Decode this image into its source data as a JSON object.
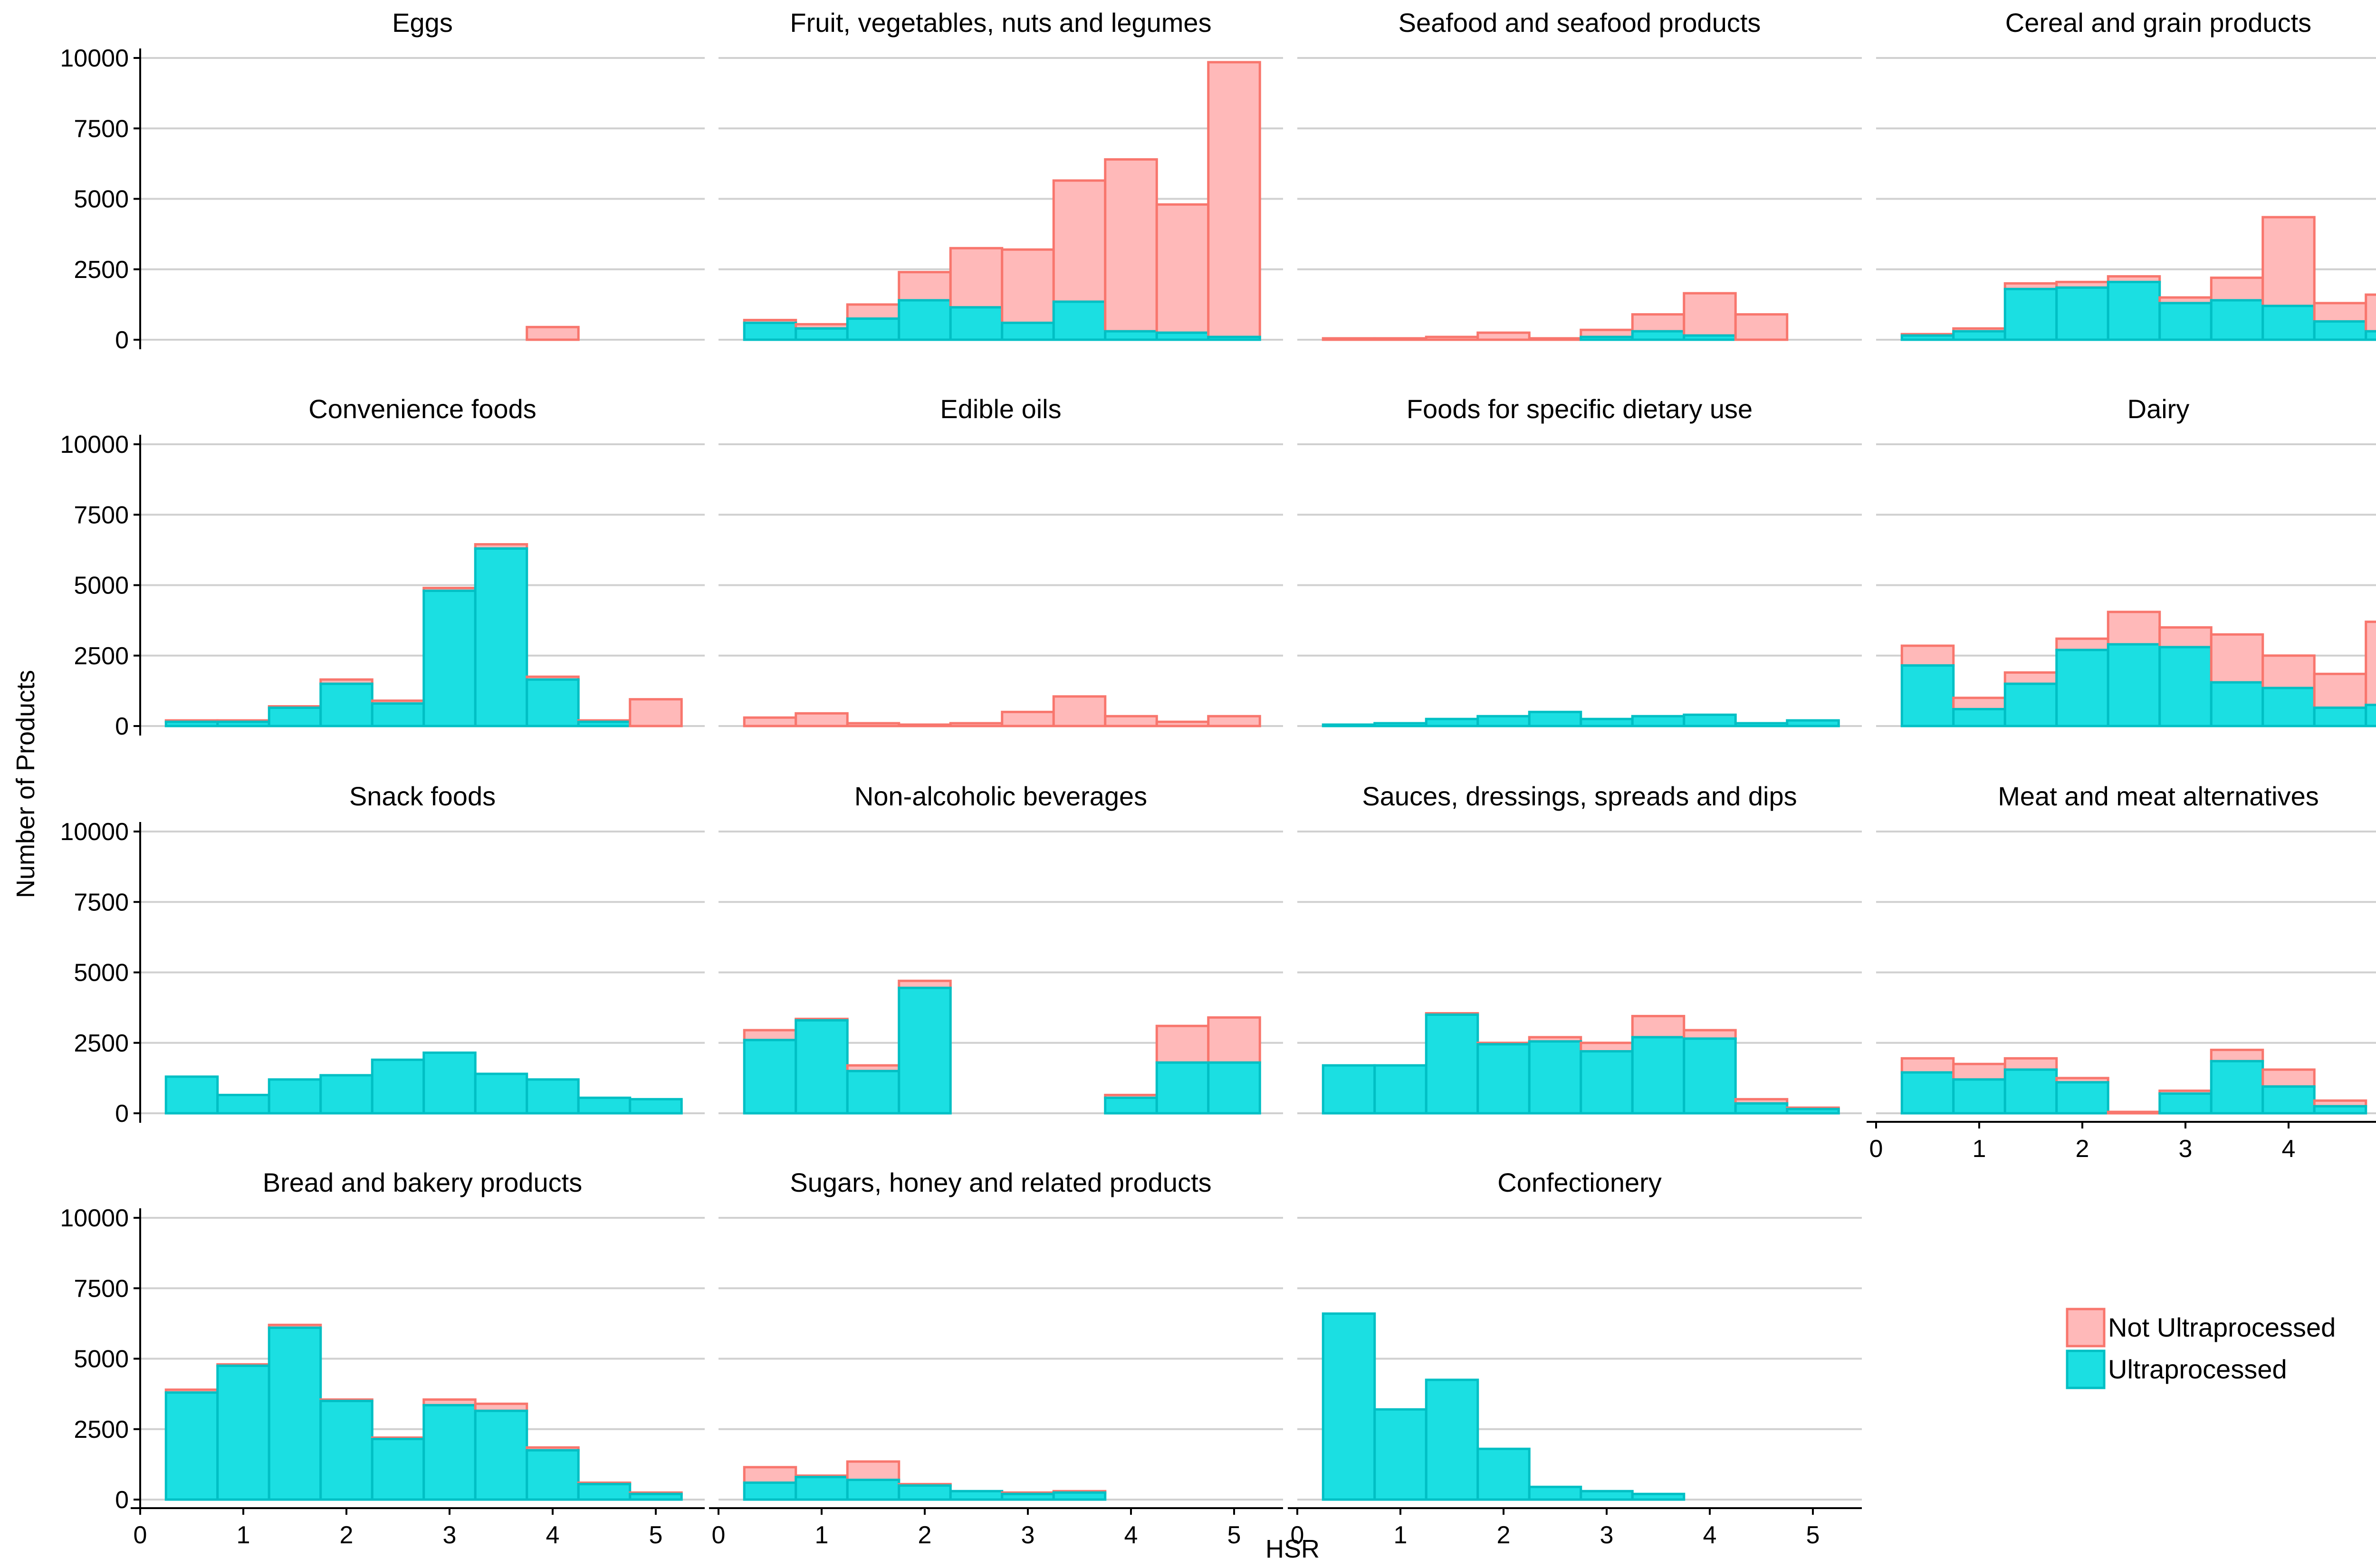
{
  "chart_data": {
    "type": "bar",
    "layout": "faceted histogram, stacked",
    "xlabel": "HSR",
    "ylabel": "Number of Products",
    "ylim": [
      0,
      10000
    ],
    "y_ticks": [
      "0",
      "2500",
      "5000",
      "7500",
      "10000"
    ],
    "xlim": [
      0,
      5.5
    ],
    "x_ticks": [
      "0",
      "1",
      "2",
      "3",
      "4",
      "5"
    ],
    "bin_centers": [
      0.5,
      1.0,
      1.5,
      2.0,
      2.5,
      3.0,
      3.5,
      4.0,
      4.5,
      5.0
    ],
    "bin_width": 0.5,
    "grid": true,
    "legend_position": "bottom-right",
    "series": [
      {
        "name": "Not Ultraprocessed",
        "fill": "#ffb9b9",
        "edge": "#f8766d"
      },
      {
        "name": "Ultraprocessed",
        "fill": "#1bdfe2",
        "edge": "#00bfc4"
      }
    ],
    "facets": [
      {
        "title": "Eggs",
        "ultra": [
          0,
          0,
          0,
          0,
          0,
          0,
          0,
          0,
          0,
          0
        ],
        "not_ultra": [
          0,
          0,
          0,
          0,
          0,
          0,
          0,
          450,
          0,
          0
        ]
      },
      {
        "title": "Fruit, vegetables, nuts and legumes",
        "ultra": [
          600,
          400,
          750,
          1400,
          1150,
          600,
          1350,
          300,
          250,
          100
        ],
        "not_ultra": [
          100,
          150,
          500,
          1000,
          2100,
          2600,
          4300,
          6100,
          4550,
          9750
        ]
      },
      {
        "title": "Seafood and seafood products",
        "ultra": [
          0,
          0,
          0,
          0,
          0,
          100,
          300,
          150,
          0,
          0
        ],
        "not_ultra": [
          50,
          50,
          100,
          250,
          50,
          250,
          600,
          1500,
          900,
          0
        ]
      },
      {
        "title": "Cereal and grain products",
        "ultra": [
          150,
          300,
          1800,
          1850,
          2050,
          1300,
          1400,
          1200,
          650,
          300
        ],
        "not_ultra": [
          50,
          100,
          200,
          200,
          200,
          200,
          800,
          3150,
          650,
          1300
        ]
      },
      {
        "title": "Convenience foods",
        "ultra": [
          150,
          150,
          650,
          1500,
          800,
          4800,
          6300,
          1650,
          150,
          0
        ],
        "not_ultra": [
          50,
          50,
          50,
          150,
          100,
          100,
          150,
          100,
          50,
          950
        ]
      },
      {
        "title": "Edible oils",
        "ultra": [
          0,
          0,
          0,
          0,
          0,
          0,
          0,
          0,
          0,
          0
        ],
        "not_ultra": [
          300,
          450,
          100,
          50,
          100,
          500,
          1050,
          350,
          150,
          350
        ]
      },
      {
        "title": "Foods for specific dietary use",
        "ultra": [
          50,
          100,
          250,
          350,
          500,
          250,
          350,
          400,
          100,
          200
        ],
        "not_ultra": [
          0,
          0,
          0,
          0,
          0,
          0,
          0,
          0,
          0,
          0
        ]
      },
      {
        "title": "Dairy",
        "ultra": [
          2150,
          600,
          1500,
          2700,
          2900,
          2800,
          1550,
          1350,
          650,
          750
        ],
        "not_ultra": [
          700,
          400,
          400,
          400,
          1150,
          700,
          1700,
          1150,
          1200,
          2950
        ]
      },
      {
        "title": "Snack foods",
        "ultra": [
          1300,
          650,
          1200,
          1350,
          1900,
          2150,
          1400,
          1200,
          550,
          500
        ],
        "not_ultra": [
          0,
          0,
          0,
          0,
          0,
          0,
          0,
          0,
          0,
          0
        ]
      },
      {
        "title": "Non-alcoholic beverages",
        "ultra": [
          2600,
          3300,
          1500,
          4450,
          0,
          0,
          0,
          550,
          1800,
          1800
        ],
        "not_ultra": [
          350,
          50,
          200,
          250,
          0,
          0,
          0,
          100,
          1300,
          1600
        ]
      },
      {
        "title": "Sauces, dressings, spreads and dips",
        "ultra": [
          1700,
          1700,
          3500,
          2450,
          2550,
          2200,
          2700,
          2650,
          350,
          150
        ],
        "not_ultra": [
          0,
          0,
          50,
          50,
          150,
          300,
          750,
          300,
          150,
          50
        ]
      },
      {
        "title": "Meat and meat alternatives",
        "ultra": [
          1450,
          1200,
          1550,
          1100,
          0,
          700,
          1850,
          950,
          250,
          0
        ],
        "not_ultra": [
          500,
          550,
          400,
          150,
          50,
          100,
          400,
          600,
          200,
          0
        ]
      },
      {
        "title": "Bread and bakery products",
        "ultra": [
          3800,
          4750,
          6100,
          3500,
          2150,
          3350,
          3150,
          1750,
          550,
          200
        ],
        "not_ultra": [
          100,
          50,
          100,
          50,
          50,
          200,
          250,
          100,
          50,
          50
        ]
      },
      {
        "title": "Sugars, honey and related products",
        "ultra": [
          600,
          800,
          700,
          500,
          300,
          200,
          250,
          0,
          0,
          0
        ],
        "not_ultra": [
          550,
          50,
          650,
          50,
          0,
          50,
          50,
          0,
          0,
          0
        ]
      },
      {
        "title": "Confectionery",
        "ultra": [
          6600,
          3200,
          4250,
          1800,
          450,
          300,
          200,
          0,
          0,
          0
        ],
        "not_ultra": [
          0,
          0,
          0,
          0,
          0,
          0,
          0,
          0,
          0,
          0
        ]
      }
    ]
  }
}
